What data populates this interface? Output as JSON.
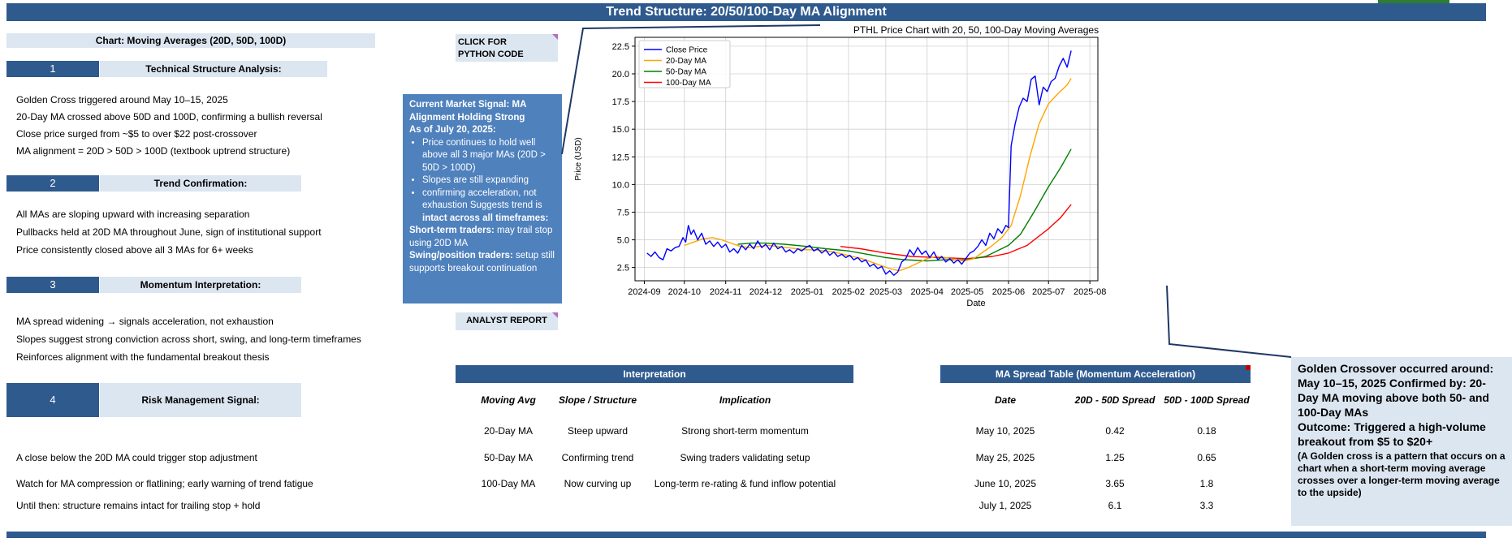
{
  "banner_title": "Trend Structure: 20/50/100-Day MA Alignment",
  "chart_label": "Chart: Moving Averages (20D, 50D, 100D)",
  "sections": [
    {
      "num": "1",
      "title": "Technical Structure Analysis:",
      "bullets": [
        "Golden Cross triggered around May 10–15, 2025",
        "20-Day MA crossed above 50D and 100D, confirming a bullish reversal",
        "Close price surged from ~$5 to over $22 post-crossover",
        "MA alignment = 20D > 50D > 100D (textbook uptrend structure)"
      ]
    },
    {
      "num": "2",
      "title": "Trend Confirmation:",
      "bullets": [
        "All MAs are sloping upward with increasing separation",
        "Pullbacks held at 20D MA throughout June, sign of institutional support",
        "Price consistently closed above all 3 MAs for 6+ weeks"
      ]
    },
    {
      "num": "3",
      "title": "Momentum Interpretation:",
      "bullets": [
        "MA spread widening → signals acceleration, not exhaustion",
        "Slopes suggest strong conviction across short, swing, and long-term timeframes",
        "Reinforces alignment with the fundamental breakout thesis"
      ]
    },
    {
      "num": "4",
      "title": "Risk Management Signal:",
      "bullets": [
        "A close below the 20D MA could trigger stop adjustment",
        "Watch for MA compression or flatlining; early warning of trend fatigue",
        "Until then: structure remains intact for trailing stop + hold"
      ]
    }
  ],
  "buttons": {
    "python_line1": "CLICK FOR",
    "python_line2": "PYTHON CODE",
    "analyst": "ANALYST REPORT"
  },
  "signal": {
    "heading1": "Current Market Signal: MA Alignment Holding Strong",
    "heading2": "As of July 20, 2025:",
    "bullet1": "Price continues to hold well above all 3 major MAs (20D > 50D > 100D)",
    "bullet2": "Slopes are still expanding",
    "bullet3_plain": "confirming acceleration, not exhaustion Suggests trend is ",
    "bullet3_bold": "intact across all timeframes:",
    "short_label": "Short-term traders:",
    "short_text": " may trail stop using 20D MA",
    "swing_label": "Swing/position traders:",
    "swing_text": " setup still supports breakout continuation"
  },
  "golden": {
    "main": "Golden Crossover occurred around: May 10–15, 2025 Confirmed by: 20-Day MA moving above both 50- and 100-Day MAs",
    "outcome": "Outcome: Triggered a high-volume breakout from $5 to $20+",
    "note": "(A Golden cross is a pattern that occurs on a chart when a short-term moving average crosses over a longer-term moving average to the upside)"
  },
  "interpretation": {
    "header": "Interpretation",
    "columns": [
      "Moving Avg",
      "Slope / Structure",
      "Implication"
    ],
    "rows": [
      [
        "20-Day MA",
        "Steep upward",
        "Strong short-term momentum"
      ],
      [
        "50-Day MA",
        "Confirming trend",
        "Swing traders validating setup"
      ],
      [
        "100-Day MA",
        "Now curving up",
        "Long-term re-rating & fund inflow potential"
      ]
    ]
  },
  "spread": {
    "header": "MA Spread Table (Momentum Acceleration)",
    "columns": [
      "Date",
      "20D - 50D Spread",
      "50D - 100D Spread"
    ],
    "rows": [
      [
        "May 10, 2025",
        "0.42",
        "0.18"
      ],
      [
        "May 25, 2025",
        "1.25",
        "0.65"
      ],
      [
        "June 10, 2025",
        "3.65",
        "1.8"
      ],
      [
        "July 1, 2025",
        "6.1",
        "3.3"
      ]
    ]
  },
  "chart_data": {
    "type": "line",
    "title": "PTHL Price Chart with 20, 50, 100-Day Moving Averages",
    "xlabel": "Date",
    "ylabel": "Price (USD)",
    "ylim": [
      1.3,
      23.3
    ],
    "xlim": [
      "2024-08-25",
      "2025-08-07"
    ],
    "yticks": [
      2.5,
      5.0,
      7.5,
      10.0,
      12.5,
      15.0,
      17.5,
      20.0,
      22.5
    ],
    "ytick_labels": [
      "2.5",
      "5.0",
      "7.5",
      "10.0",
      "12.5",
      "15.0",
      "17.5",
      "20.0",
      "22.5"
    ],
    "xticks": [
      "2024-09-01",
      "2024-10-01",
      "2024-11-01",
      "2024-12-01",
      "2025-01-01",
      "2025-02-01",
      "2025-03-01",
      "2025-04-01",
      "2025-05-01",
      "2025-06-01",
      "2025-07-01",
      "2025-08-01"
    ],
    "xtick_labels": [
      "2024-09",
      "2024-10",
      "2024-11",
      "2024-12",
      "2025-01",
      "2025-02",
      "2025-03",
      "2025-04",
      "2025-05",
      "2025-06",
      "2025-07",
      "2025-08"
    ],
    "grid": true,
    "legend": "top-left",
    "series": [
      {
        "name": "Close Price",
        "color": "#0000ff",
        "points": [
          [
            "2024-09-03",
            3.8
          ],
          [
            "2024-09-06",
            3.5
          ],
          [
            "2024-09-09",
            3.9
          ],
          [
            "2024-09-12",
            3.4
          ],
          [
            "2024-09-15",
            3.2
          ],
          [
            "2024-09-18",
            4.2
          ],
          [
            "2024-09-21",
            4.0
          ],
          [
            "2024-09-24",
            4.3
          ],
          [
            "2024-09-27",
            4.4
          ],
          [
            "2024-09-30",
            5.2
          ],
          [
            "2024-10-02",
            4.8
          ],
          [
            "2024-10-04",
            6.3
          ],
          [
            "2024-10-06",
            5.5
          ],
          [
            "2024-10-08",
            5.9
          ],
          [
            "2024-10-11",
            5.0
          ],
          [
            "2024-10-14",
            5.6
          ],
          [
            "2024-10-17",
            4.6
          ],
          [
            "2024-10-20",
            4.9
          ],
          [
            "2024-10-23",
            4.4
          ],
          [
            "2024-10-26",
            4.8
          ],
          [
            "2024-10-29",
            4.3
          ],
          [
            "2024-11-01",
            4.6
          ],
          [
            "2024-11-04",
            3.9
          ],
          [
            "2024-11-07",
            4.2
          ],
          [
            "2024-11-10",
            3.8
          ],
          [
            "2024-11-13",
            4.5
          ],
          [
            "2024-11-16",
            4.1
          ],
          [
            "2024-11-19",
            4.6
          ],
          [
            "2024-11-22",
            4.2
          ],
          [
            "2024-11-25",
            4.9
          ],
          [
            "2024-11-28",
            4.3
          ],
          [
            "2024-12-01",
            4.6
          ],
          [
            "2024-12-04",
            4.1
          ],
          [
            "2024-12-07",
            4.7
          ],
          [
            "2024-12-10",
            4.2
          ],
          [
            "2024-12-13",
            4.4
          ],
          [
            "2024-12-16",
            3.9
          ],
          [
            "2024-12-19",
            4.1
          ],
          [
            "2024-12-22",
            3.8
          ],
          [
            "2024-12-25",
            4.2
          ],
          [
            "2024-12-28",
            4.0
          ],
          [
            "2024-12-31",
            4.3
          ],
          [
            "2025-01-03",
            4.5
          ],
          [
            "2025-01-06",
            4.0
          ],
          [
            "2025-01-09",
            4.2
          ],
          [
            "2025-01-12",
            3.8
          ],
          [
            "2025-01-15",
            4.1
          ],
          [
            "2025-01-18",
            3.6
          ],
          [
            "2025-01-21",
            3.9
          ],
          [
            "2025-01-24",
            3.5
          ],
          [
            "2025-01-27",
            3.7
          ],
          [
            "2025-01-30",
            3.4
          ],
          [
            "2025-02-02",
            3.6
          ],
          [
            "2025-02-05",
            3.2
          ],
          [
            "2025-02-08",
            3.4
          ],
          [
            "2025-02-11",
            3.0
          ],
          [
            "2025-02-14",
            3.2
          ],
          [
            "2025-02-17",
            2.6
          ],
          [
            "2025-02-20",
            2.8
          ],
          [
            "2025-02-23",
            2.4
          ],
          [
            "2025-02-26",
            2.6
          ],
          [
            "2025-03-01",
            1.9
          ],
          [
            "2025-03-04",
            2.2
          ],
          [
            "2025-03-07",
            1.8
          ],
          [
            "2025-03-10",
            2.1
          ],
          [
            "2025-03-13",
            3.0
          ],
          [
            "2025-03-16",
            3.3
          ],
          [
            "2025-03-19",
            4.1
          ],
          [
            "2025-03-22",
            3.6
          ],
          [
            "2025-03-25",
            4.3
          ],
          [
            "2025-03-28",
            3.7
          ],
          [
            "2025-03-31",
            4.0
          ],
          [
            "2025-04-03",
            3.4
          ],
          [
            "2025-04-06",
            3.9
          ],
          [
            "2025-04-09",
            3.2
          ],
          [
            "2025-04-12",
            3.5
          ],
          [
            "2025-04-15",
            3.0
          ],
          [
            "2025-04-18",
            3.3
          ],
          [
            "2025-04-21",
            2.9
          ],
          [
            "2025-04-24",
            3.2
          ],
          [
            "2025-04-27",
            2.8
          ],
          [
            "2025-04-30",
            3.3
          ],
          [
            "2025-05-03",
            3.8
          ],
          [
            "2025-05-06",
            4.0
          ],
          [
            "2025-05-09",
            4.4
          ],
          [
            "2025-05-12",
            5.0
          ],
          [
            "2025-05-15",
            4.5
          ],
          [
            "2025-05-18",
            5.6
          ],
          [
            "2025-05-21",
            5.1
          ],
          [
            "2025-05-24",
            6.0
          ],
          [
            "2025-05-27",
            5.6
          ],
          [
            "2025-05-30",
            6.3
          ],
          [
            "2025-06-01",
            6.1
          ],
          [
            "2025-06-03",
            13.5
          ],
          [
            "2025-06-06",
            15.5
          ],
          [
            "2025-06-09",
            17.0
          ],
          [
            "2025-06-12",
            17.8
          ],
          [
            "2025-06-15",
            17.5
          ],
          [
            "2025-06-18",
            19.5
          ],
          [
            "2025-06-21",
            19.8
          ],
          [
            "2025-06-24",
            17.2
          ],
          [
            "2025-06-27",
            18.8
          ],
          [
            "2025-06-30",
            18.4
          ],
          [
            "2025-07-03",
            19.3
          ],
          [
            "2025-07-06",
            19.6
          ],
          [
            "2025-07-09",
            20.7
          ],
          [
            "2025-07-12",
            21.4
          ],
          [
            "2025-07-15",
            20.6
          ],
          [
            "2025-07-18",
            22.1
          ]
        ]
      },
      {
        "name": "20-Day MA",
        "color": "#ffa500",
        "points": [
          [
            "2024-10-01",
            4.5
          ],
          [
            "2024-10-08",
            4.8
          ],
          [
            "2024-10-15",
            5.1
          ],
          [
            "2024-10-22",
            5.2
          ],
          [
            "2024-10-29",
            5.0
          ],
          [
            "2024-11-05",
            4.7
          ],
          [
            "2024-11-12",
            4.4
          ],
          [
            "2024-11-19",
            4.3
          ],
          [
            "2024-11-26",
            4.4
          ],
          [
            "2024-12-03",
            4.5
          ],
          [
            "2024-12-10",
            4.4
          ],
          [
            "2024-12-17",
            4.3
          ],
          [
            "2024-12-24",
            4.2
          ],
          [
            "2024-12-31",
            4.1
          ],
          [
            "2025-01-07",
            4.1
          ],
          [
            "2025-01-14",
            4.0
          ],
          [
            "2025-01-21",
            3.9
          ],
          [
            "2025-01-28",
            3.7
          ],
          [
            "2025-02-04",
            3.5
          ],
          [
            "2025-02-11",
            3.3
          ],
          [
            "2025-02-18",
            3.0
          ],
          [
            "2025-02-25",
            2.7
          ],
          [
            "2025-03-04",
            2.4
          ],
          [
            "2025-03-11",
            2.2
          ],
          [
            "2025-03-18",
            2.5
          ],
          [
            "2025-03-25",
            2.9
          ],
          [
            "2025-04-01",
            3.3
          ],
          [
            "2025-04-08",
            3.5
          ],
          [
            "2025-04-15",
            3.4
          ],
          [
            "2025-04-22",
            3.2
          ],
          [
            "2025-04-29",
            3.1
          ],
          [
            "2025-05-06",
            3.3
          ],
          [
            "2025-05-13",
            3.9
          ],
          [
            "2025-05-20",
            4.5
          ],
          [
            "2025-05-27",
            5.2
          ],
          [
            "2025-06-03",
            6.3
          ],
          [
            "2025-06-10",
            9.0
          ],
          [
            "2025-06-17",
            12.5
          ],
          [
            "2025-06-24",
            15.5
          ],
          [
            "2025-07-01",
            17.3
          ],
          [
            "2025-07-08",
            18.2
          ],
          [
            "2025-07-15",
            19.0
          ],
          [
            "2025-07-18",
            19.6
          ]
        ]
      },
      {
        "name": "50-Day MA",
        "color": "#008000",
        "points": [
          [
            "2024-11-10",
            4.6
          ],
          [
            "2024-11-20",
            4.7
          ],
          [
            "2024-12-01",
            4.7
          ],
          [
            "2024-12-15",
            4.6
          ],
          [
            "2025-01-01",
            4.4
          ],
          [
            "2025-01-15",
            4.2
          ],
          [
            "2025-02-01",
            4.0
          ],
          [
            "2025-02-15",
            3.7
          ],
          [
            "2025-03-01",
            3.4
          ],
          [
            "2025-03-15",
            3.2
          ],
          [
            "2025-04-01",
            3.1
          ],
          [
            "2025-04-15",
            3.2
          ],
          [
            "2025-05-01",
            3.2
          ],
          [
            "2025-05-15",
            3.5
          ],
          [
            "2025-06-01",
            4.5
          ],
          [
            "2025-06-10",
            5.5
          ],
          [
            "2025-06-20",
            7.5
          ],
          [
            "2025-07-01",
            9.8
          ],
          [
            "2025-07-10",
            11.5
          ],
          [
            "2025-07-18",
            13.2
          ]
        ]
      },
      {
        "name": "100-Day MA",
        "color": "#ff0000",
        "points": [
          [
            "2025-01-26",
            4.4
          ],
          [
            "2025-02-10",
            4.2
          ],
          [
            "2025-03-01",
            3.8
          ],
          [
            "2025-03-20",
            3.5
          ],
          [
            "2025-04-10",
            3.4
          ],
          [
            "2025-05-01",
            3.3
          ],
          [
            "2025-05-20",
            3.5
          ],
          [
            "2025-06-01",
            3.8
          ],
          [
            "2025-06-15",
            4.5
          ],
          [
            "2025-07-01",
            6.0
          ],
          [
            "2025-07-10",
            7.0
          ],
          [
            "2025-07-18",
            8.2
          ]
        ]
      }
    ]
  }
}
